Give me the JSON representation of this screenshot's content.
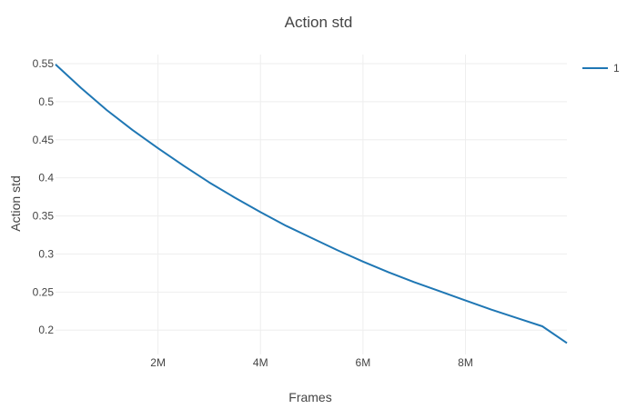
{
  "chart_data": {
    "type": "line",
    "title": "Action std",
    "xlabel": "Frames",
    "ylabel": "Action std",
    "xlim": [
      0,
      9980000
    ],
    "ylim": [
      0.168,
      0.562
    ],
    "grid": true,
    "legend_placement": "top-right",
    "x_ticks": [
      {
        "value": 2000000,
        "label": "2M"
      },
      {
        "value": 4000000,
        "label": "4M"
      },
      {
        "value": 6000000,
        "label": "6M"
      },
      {
        "value": 8000000,
        "label": "8M"
      }
    ],
    "y_ticks": [
      {
        "value": 0.55,
        "label": "0.55"
      },
      {
        "value": 0.5,
        "label": "0.5"
      },
      {
        "value": 0.45,
        "label": "0.45"
      },
      {
        "value": 0.4,
        "label": "0.4"
      },
      {
        "value": 0.35,
        "label": "0.35"
      },
      {
        "value": 0.3,
        "label": "0.3"
      },
      {
        "value": 0.25,
        "label": "0.25"
      },
      {
        "value": 0.2,
        "label": "0.2"
      }
    ],
    "series": [
      {
        "name": "1",
        "color": "#1f77b4",
        "x": [
          0,
          500000,
          1000000,
          1500000,
          2000000,
          2500000,
          3000000,
          3500000,
          4000000,
          4500000,
          5000000,
          5500000,
          6000000,
          6500000,
          7000000,
          7500000,
          8000000,
          8500000,
          9000000,
          9500000,
          9980000
        ],
        "y": [
          0.549,
          0.518,
          0.489,
          0.463,
          0.439,
          0.416,
          0.394,
          0.374,
          0.355,
          0.337,
          0.321,
          0.305,
          0.29,
          0.276,
          0.263,
          0.251,
          0.239,
          0.227,
          0.216,
          0.205,
          0.183
        ]
      }
    ]
  }
}
